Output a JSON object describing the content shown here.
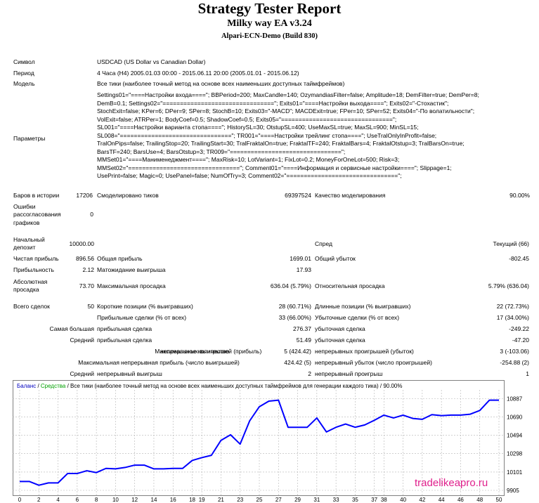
{
  "header": {
    "title": "Strategy Tester Report",
    "ea_name": "Milky way EA v3.24",
    "server": "Alpari-ECN-Demo (Build 830)"
  },
  "info": {
    "symbol_label": "Символ",
    "symbol_value": "USDCAD (US Dollar vs Canadian Dollar)",
    "period_label": "Период",
    "period_value": "4 Часа (H4) 2005.01.03 00:00 - 2015.06.11 20:00 (2005.01.01 - 2015.06.12)",
    "model_label": "Модель",
    "model_value": "Все тики (наиболее точный метод на основе всех наименьших доступных таймфреймов)",
    "params_label": "Параметры",
    "params_lines": [
      "Settings01=\"====Настройки входа====\"; BBPeriod=200; MaxCandle=140; OzymandiasFilter=false; Amplitude=18; DemFilter=true; DemPer=8;",
      "DemB=0.1; Settings02=\"================================\"; Exits01=\"====Настройки выхода====\"; Exits02=\"-Стохастик\";",
      "StochExit=false; KPer=6; DPer=9; SPer=8; StochB=10; Exits03=\"-MACD\"; MACDExit=true; FPer=10; SPer=52; Exits04=\"-По волатильности\";",
      "VolExit=false; ATRPer=1; BodyCoef=0.5; ShadowCoef=0.5; Exits05=\"================================\";",
      "SL001=\"====Настройки варианта стопа====\"; HistorySL=30; OtstupSL=400; UseMaxSL=true; MaxSL=900; MinSL=15;",
      "SL008=\"================================\"; TR001=\"====Настройки трейлинг стопа====\"; UseTralOnlyInProfit=false;",
      "TralOnPips=false; TrailingStop=20; TrailingStart=30; TralFraktalOn=true; FraktalTF=240; FraktalBars=4; FraktalOtstup=3; TralBarsOn=true;",
      "BarsTF=240; BarsUse=4; BarsOtstup=3; TR009=\"================================\";",
      "MMSet01=\"====Манименеджмент====\"; MaxRisk=10; LotVariant=1; FixLot=0.2; MoneyForOneLot=500; Risk=3;",
      "MMSet02=\"================================\"; Comment01=\"====Информация и сервисные настройки====\"; Slippage=1;",
      "UsePrint=false; Magic=0; UsePanel=false; NumOfTry=3; Comment02=\"================================\";"
    ]
  },
  "stats": {
    "bars_label": "Баров в истории",
    "bars_value": "17206",
    "ticks_label": "Смоделировано тиков",
    "ticks_value": "69397524",
    "quality_label": "Качество моделирования",
    "quality_value": "90.00%",
    "errors_label_1": "Ошибки",
    "errors_label_2": "рассогласования",
    "errors_label_3": "графиков",
    "errors_value": "0",
    "deposit_label_1": "Начальный",
    "deposit_label_2": "депозит",
    "deposit_value": "10000.00",
    "spread_label": "Спред",
    "spread_value": "Текущий (66)",
    "net_profit_label": "Чистая прибыль",
    "net_profit_value": "896.56",
    "gross_profit_label": "Общая прибыль",
    "gross_profit_value": "1699.01",
    "gross_loss_label": "Общий убыток",
    "gross_loss_value": "-802.45",
    "profit_factor_label": "Прибыльность",
    "profit_factor_value": "2.12",
    "expected_payoff_label": "Матожидание выигрыша",
    "expected_payoff_value": "17.93",
    "abs_dd_label_1": "Абсолютная",
    "abs_dd_label_2": "просадка",
    "abs_dd_value": "73.70",
    "max_dd_label": "Максимальная просадка",
    "max_dd_value": "636.04 (5.79%)",
    "rel_dd_label": "Относительная просадка",
    "rel_dd_value": "5.79% (636.04)",
    "total_trades_label": "Всего сделок",
    "total_trades_value": "50",
    "short_label": "Короткие позиции (% выигравших)",
    "short_value": "28 (60.71%)",
    "long_label": "Длинные позиции (% выигравших)",
    "long_value": "22 (72.73%)",
    "profit_trades_label": "Прибыльные сделки (% от всех)",
    "profit_trades_value": "33 (66.00%)",
    "loss_trades_label": "Убыточные сделки (% от всех)",
    "loss_trades_value": "17 (34.00%)",
    "largest_label": "Самая большая",
    "largest_profit_label": "прибыльная сделка",
    "largest_profit_value": "276.37",
    "largest_loss_label": "убыточная сделка",
    "largest_loss_value": "-249.22",
    "average_label": "Средний",
    "average_profit_label": "прибыльная сделка",
    "average_profit_value": "51.49",
    "average_loss_label": "убыточная сделка",
    "average_loss_value": "-47.20",
    "max_count_label": "Максимальное количество",
    "cons_wins_label": "непрерывных выигрышей (прибыль)",
    "cons_wins_value": "5 (424.42)",
    "cons_losses_label": "непрерывных проигрышей (убыток)",
    "cons_losses_value": "3 (-103.06)",
    "max_label": "Максимальная",
    "cons_profit_label": "непрерывная прибыль (число выигрышей)",
    "cons_profit_value": "424.42 (5)",
    "cons_loss_label": "непрерывный убыток (число проигрышей)",
    "cons_loss_value": "-254.88 (2)",
    "avg_label": "Средний",
    "avg_wins_label": "непрерывный выигрыш",
    "avg_wins_value": "2",
    "avg_losses_label": "непрерывный проигрыш",
    "avg_losses_value": "1"
  },
  "chart_legend": {
    "balance": "Баланс",
    "separator": " / ",
    "equity": "Средства",
    "rest": " / Все тики (наиболее точный метод на основе всех наименьших доступных таймфреймов для генерации каждого тика) / 90.00%"
  },
  "colors": {
    "balance_line": "#0000ff",
    "equity_line": "#00a000",
    "grid": "#b4b4b4"
  },
  "watermark": "tradelikeapro.ru",
  "chart_data": {
    "type": "line",
    "title": "",
    "xlabel": "",
    "ylabel": "",
    "x_ticks": [
      0,
      2,
      4,
      6,
      8,
      10,
      12,
      14,
      16,
      18,
      19,
      21,
      23,
      25,
      27,
      29,
      31,
      33,
      35,
      37,
      38,
      40,
      42,
      44,
      46,
      48,
      50
    ],
    "y_ticks": [
      9905,
      10101,
      10298,
      10494,
      10690,
      10887
    ],
    "xlim": [
      0,
      50
    ],
    "ylim": [
      9905,
      10950
    ],
    "series": [
      {
        "name": "Баланс",
        "x": [
          0,
          1,
          2,
          3,
          4,
          5,
          6,
          7,
          8,
          9,
          10,
          11,
          12,
          13,
          14,
          15,
          16,
          17,
          18,
          19,
          20,
          21,
          22,
          23,
          24,
          25,
          26,
          27,
          28,
          29,
          30,
          31,
          32,
          33,
          34,
          35,
          36,
          37,
          38,
          39,
          40,
          41,
          42,
          43,
          44,
          45,
          46,
          47,
          48,
          49,
          50
        ],
        "y": [
          10000,
          10000,
          9960,
          9985,
          9985,
          10085,
          10085,
          10115,
          10095,
          10140,
          10135,
          10150,
          10175,
          10175,
          10135,
          10135,
          10140,
          10140,
          10225,
          10255,
          10280,
          10440,
          10500,
          10400,
          10650,
          10800,
          10860,
          10870,
          10580,
          10580,
          10580,
          10680,
          10530,
          10580,
          10615,
          10580,
          10605,
          10655,
          10710,
          10680,
          10710,
          10675,
          10665,
          10715,
          10705,
          10710,
          10710,
          10720,
          10760,
          10870,
          10870
        ]
      }
    ]
  }
}
